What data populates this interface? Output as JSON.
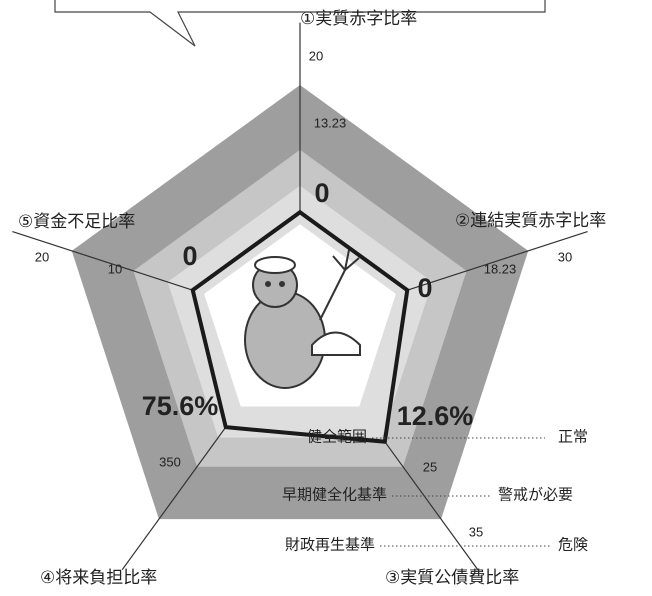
{
  "chart_data": {
    "type": "radar",
    "categories": [
      "①実質赤字比率",
      "②連結実質赤字比率",
      "③実質公債費比率",
      "④将来負担比率",
      "⑤資金不足比率"
    ],
    "values": [
      0,
      0,
      12.6,
      75.6,
      0
    ],
    "value_labels": [
      "0",
      "0",
      "12.6%",
      "75.6%",
      "0"
    ],
    "axis_ticks": [
      [
        13.23,
        20
      ],
      [
        18.23,
        30
      ],
      [
        25,
        35
      ],
      [
        350
      ],
      [
        10,
        20
      ]
    ],
    "bands": [
      {
        "label": "健全範囲",
        "note": "正常"
      },
      {
        "label": "早期健全化基準",
        "note": "警戒が必要"
      },
      {
        "label": "財政再生基準",
        "note": "危険"
      }
    ],
    "band_colors": [
      "#dedede",
      "#c6c6c6",
      "#9e9e9e"
    ],
    "line_color": "#1a1a1a"
  }
}
